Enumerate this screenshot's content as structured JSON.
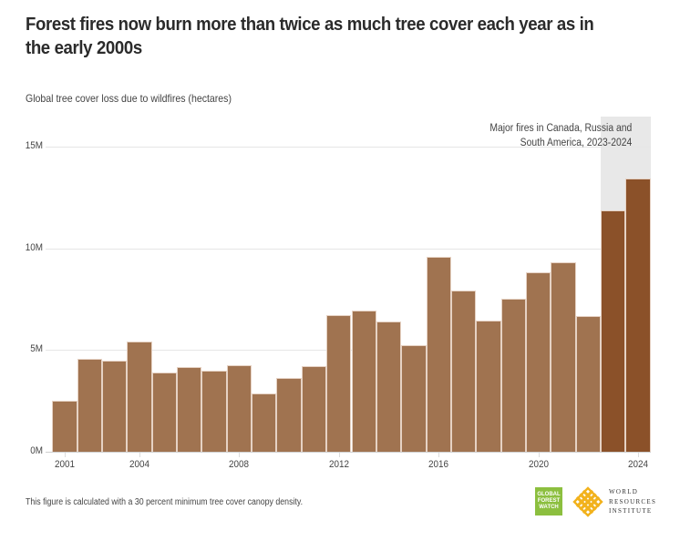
{
  "title": "Forest fires now burn more than twice as much tree cover each year as in the early 2000s",
  "subtitle": "Global tree cover loss due to wildfires (hectares)",
  "annotation": {
    "line1": "Major fires in Canada, Russia and",
    "line2": "South America, 2023-2024"
  },
  "footnote": "This figure is calculated with a 30 percent minimum tree cover canopy density.",
  "logos": {
    "gfw": [
      "GLOBAL",
      "FOREST",
      "WATCH"
    ],
    "wri": [
      "WORLD",
      "RESOURCES",
      "INSTITUTE"
    ]
  },
  "colors": {
    "bar": "#a07350",
    "bar_highlight": "#8b5129",
    "highlight_band": "#e8e8e8",
    "gfw_green": "#8cbf3f",
    "wri_orange": "#f2b21c"
  },
  "chart_data": {
    "type": "bar",
    "title": "Forest fires now burn more than twice as much tree cover each year as in the early 2000s",
    "subtitle": "Global tree cover loss due to wildfires (hectares)",
    "xlabel": "",
    "ylabel": "Global tree cover loss due to wildfires (hectares)",
    "categories": [
      "2001",
      "2002",
      "2003",
      "2004",
      "2005",
      "2006",
      "2007",
      "2008",
      "2009",
      "2010",
      "2011",
      "2012",
      "2013",
      "2014",
      "2015",
      "2016",
      "2017",
      "2018",
      "2019",
      "2020",
      "2021",
      "2022",
      "2023",
      "2024"
    ],
    "values": [
      2510000,
      4570000,
      4480000,
      5420000,
      3900000,
      4160000,
      3990000,
      4250000,
      2870000,
      3630000,
      4210000,
      6720000,
      6950000,
      6400000,
      5250000,
      9580000,
      7910000,
      6430000,
      7540000,
      8840000,
      9300000,
      6670000,
      11880000,
      13430000
    ],
    "highlighted": [
      "2023",
      "2024"
    ],
    "ylim": [
      0,
      15000000
    ],
    "yticks": [
      0,
      5000000,
      10000000,
      15000000
    ],
    "ytick_labels": [
      "0M",
      "5M",
      "10M",
      "15M"
    ],
    "xtick_labels": [
      "2001",
      "2004",
      "2008",
      "2012",
      "2016",
      "2020",
      "2024"
    ],
    "grid": true,
    "legend": null,
    "annotations": [
      {
        "text": "Major fires in Canada, Russia and South America, 2023-2024",
        "range": [
          "2023",
          "2024"
        ]
      }
    ]
  }
}
